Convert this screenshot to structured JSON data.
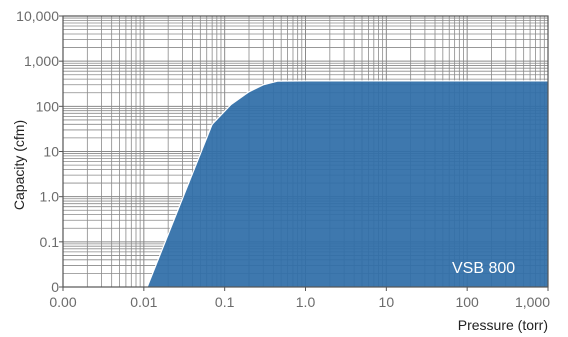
{
  "chart_data": {
    "type": "area",
    "title": "",
    "xlabel": "Pressure (torr)",
    "ylabel": "Capacity (cfm)",
    "x_scale": "log",
    "y_scale": "log",
    "xlim": [
      0.001,
      1000
    ],
    "ylim": [
      0.01,
      10000
    ],
    "x_ticks": [
      {
        "value": 0.001,
        "label": "0.00"
      },
      {
        "value": 0.01,
        "label": "0.01"
      },
      {
        "value": 0.1,
        "label": "0.1"
      },
      {
        "value": 1,
        "label": "1.0"
      },
      {
        "value": 10,
        "label": "10"
      },
      {
        "value": 100,
        "label": "100"
      },
      {
        "value": 1000,
        "label": "1,000"
      }
    ],
    "y_ticks": [
      {
        "value": 0.01,
        "label": "0"
      },
      {
        "value": 0.1,
        "label": "0.1"
      },
      {
        "value": 1,
        "label": "1.0"
      },
      {
        "value": 10,
        "label": "10"
      },
      {
        "value": 100,
        "label": "100"
      },
      {
        "value": 1000,
        "label": "1,000"
      },
      {
        "value": 10000,
        "label": "10,000"
      }
    ],
    "grid": true,
    "series": [
      {
        "name": "VSB 800",
        "color": "#2f6ea8",
        "points": [
          {
            "x": 0.011,
            "y": 0.01
          },
          {
            "x": 0.07,
            "y": 40
          },
          {
            "x": 0.12,
            "y": 110
          },
          {
            "x": 0.2,
            "y": 210
          },
          {
            "x": 0.3,
            "y": 300
          },
          {
            "x": 0.45,
            "y": 360
          },
          {
            "x": 1,
            "y": 365
          },
          {
            "x": 10,
            "y": 365
          },
          {
            "x": 100,
            "y": 365
          },
          {
            "x": 1000,
            "y": 365
          }
        ]
      }
    ]
  }
}
